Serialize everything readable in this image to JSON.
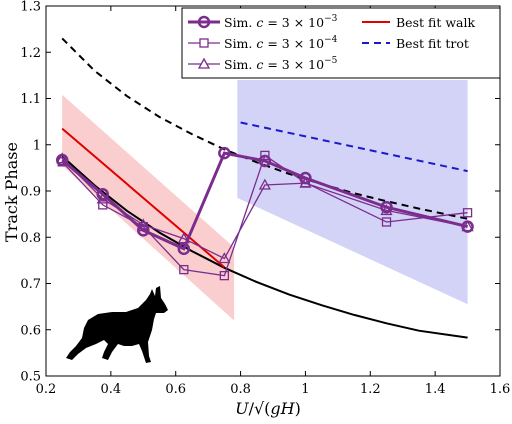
{
  "chart_data": {
    "type": "line",
    "xlabel": "U/√(gH)",
    "ylabel": "Track Phase",
    "xlim": [
      0.2,
      1.6
    ],
    "ylim": [
      0.5,
      1.3
    ],
    "xticks": [
      "0.2",
      "0.4",
      "0.6",
      "0.8",
      "1",
      "1.2",
      "1.4",
      "1.6"
    ],
    "yticks": [
      "0.5",
      "0.6",
      "0.7",
      "0.8",
      "0.9",
      "1",
      "1.1",
      "1.2",
      "1.3"
    ],
    "grid": false,
    "legend_position": "top-right",
    "colors": {
      "sim": "#7b2d8e",
      "walk_fit": "#e00000",
      "trot_fit": "#1a1acc",
      "walk_band": "#f5a5a5",
      "trot_band": "#b5b5f2",
      "black_curve": "#000000"
    },
    "series": [
      {
        "name": "Sim. c = 3×10⁻³",
        "legend_main": "Sim. ",
        "legend_c": "c",
        "legend_rest": " = 3 × 10",
        "legend_exp": "−3",
        "marker": "circle",
        "x": [
          0.25,
          0.375,
          0.5,
          0.625,
          0.75,
          0.875,
          1.0,
          1.25,
          1.5
        ],
        "y": [
          0.967,
          0.893,
          0.815,
          0.775,
          0.982,
          0.965,
          0.928,
          0.865,
          0.823
        ]
      },
      {
        "name": "Sim. c = 3×10⁻⁴",
        "legend_main": "Sim. ",
        "legend_c": "c",
        "legend_rest": " = 3 × 10",
        "legend_exp": "−4",
        "marker": "square",
        "x": [
          0.25,
          0.375,
          0.5,
          0.625,
          0.75,
          0.875,
          1.0,
          1.25,
          1.5
        ],
        "y": [
          0.963,
          0.87,
          0.823,
          0.73,
          0.717,
          0.977,
          0.918,
          0.833,
          0.853
        ]
      },
      {
        "name": "Sim. c = 3×10⁻⁵",
        "legend_main": "Sim. ",
        "legend_c": "c",
        "legend_rest": " = 3 × 10",
        "legend_exp": "−5",
        "marker": "triangle",
        "x": [
          0.25,
          0.375,
          0.5,
          0.625,
          0.75,
          0.875,
          1.0,
          1.25,
          1.5
        ],
        "y": [
          0.97,
          0.883,
          0.827,
          0.797,
          0.754,
          0.913,
          0.917,
          0.858,
          0.823
        ]
      },
      {
        "name": "Best fit walk",
        "style": "solid",
        "x": [
          0.25,
          0.75
        ],
        "y": [
          1.035,
          0.735
        ]
      },
      {
        "name": "Best fit trot",
        "style": "dashed",
        "x": [
          0.8,
          1.5
        ],
        "y": [
          1.048,
          0.943
        ]
      }
    ],
    "black_dashed_curve": {
      "x": [
        0.25,
        0.35,
        0.45,
        0.55,
        0.65,
        0.75,
        0.85,
        0.95,
        1.05,
        1.15,
        1.25,
        1.35,
        1.5
      ],
      "y": [
        1.23,
        1.16,
        1.105,
        1.06,
        1.023,
        0.99,
        0.962,
        0.937,
        0.915,
        0.895,
        0.878,
        0.862,
        0.84
      ]
    },
    "black_solid_curve": {
      "x": [
        0.25,
        0.35,
        0.45,
        0.55,
        0.65,
        0.75,
        0.85,
        0.95,
        1.05,
        1.15,
        1.25,
        1.35,
        1.5
      ],
      "y": [
        0.975,
        0.912,
        0.857,
        0.81,
        0.77,
        0.734,
        0.703,
        0.676,
        0.653,
        0.632,
        0.614,
        0.598,
        0.583
      ]
    },
    "walk_band": {
      "x": [
        0.25,
        0.78,
        0.78,
        0.25
      ],
      "y": [
        1.108,
        0.778,
        0.62,
        0.955
      ]
    },
    "trot_band": {
      "x": [
        0.79,
        1.5,
        1.5,
        0.79
      ],
      "y": [
        1.14,
        1.14,
        0.655,
        0.885
      ]
    },
    "icon": "dog-silhouette-icon"
  }
}
